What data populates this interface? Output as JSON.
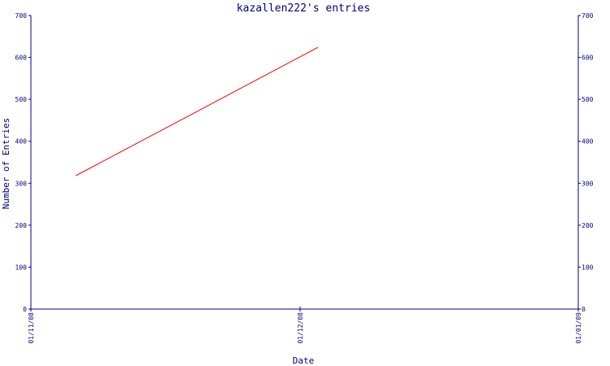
{
  "chart_data": {
    "type": "line",
    "title": "kazallen222's entries",
    "xlabel": "Date",
    "ylabel": "Number of Entries",
    "x_ticks": [
      "01/11/08",
      "01/12/08",
      "01/01/09"
    ],
    "x_range": [
      "2008-11-01",
      "2009-01-01"
    ],
    "ylim": [
      0,
      700
    ],
    "y_ticks": [
      0,
      100,
      200,
      300,
      400,
      500,
      600,
      700
    ],
    "grid": false,
    "series": [
      {
        "x": [
          "2008-11-06",
          "2008-12-03"
        ],
        "y": [
          318,
          624
        ],
        "color": "#ff0000"
      }
    ]
  },
  "colors": {
    "axis": "#000080",
    "series": "#ff0000"
  }
}
